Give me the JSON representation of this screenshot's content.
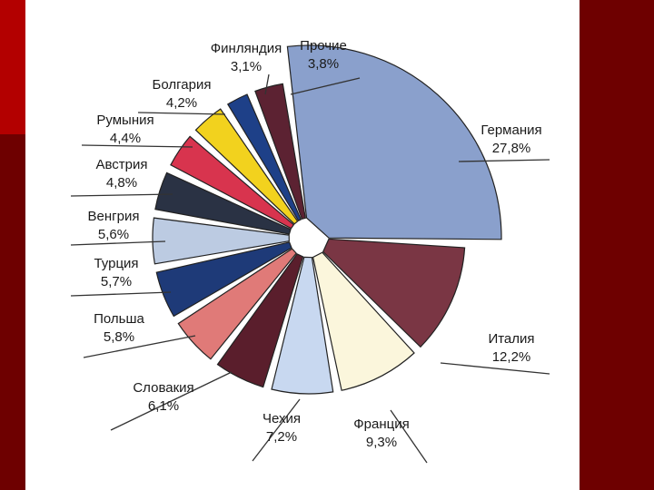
{
  "chart_data": {
    "type": "pie",
    "title": "",
    "slices": [
      {
        "label": "Германия",
        "pct": "27,8%",
        "value": 27.8,
        "color": "#8aa0cc"
      },
      {
        "label": "Италия",
        "pct": "12,2%",
        "value": 12.2,
        "color": "#7a3644"
      },
      {
        "label": "Франция",
        "pct": "9,3%",
        "value": 9.3,
        "color": "#fbf6dc"
      },
      {
        "label": "Чехия",
        "pct": "7,2%",
        "value": 7.2,
        "color": "#c8d8f0"
      },
      {
        "label": "Словакия",
        "pct": "6,1%",
        "value": 6.1,
        "color": "#5a1e2c"
      },
      {
        "label": "Польша",
        "pct": "5,8%",
        "value": 5.8,
        "color": "#e07a78"
      },
      {
        "label": "Турция",
        "pct": "5,7%",
        "value": 5.7,
        "color": "#1e3a78"
      },
      {
        "label": "Венгрия",
        "pct": "5,6%",
        "value": 5.6,
        "color": "#bccbe2"
      },
      {
        "label": "Австрия",
        "pct": "4,8%",
        "value": 4.8,
        "color": "#2a3244"
      },
      {
        "label": "Румыния",
        "pct": "4,4%",
        "value": 4.4,
        "color": "#d8344e"
      },
      {
        "label": "Болгария",
        "pct": "4,2%",
        "value": 4.2,
        "color": "#f2d21e"
      },
      {
        "label": "Финляндия",
        "pct": "3,1%",
        "value": 3.1,
        "color": "#1e4088"
      },
      {
        "label": "Прочие",
        "pct": "3,8%",
        "value": 3.8,
        "color": "#5c2232"
      }
    ]
  }
}
